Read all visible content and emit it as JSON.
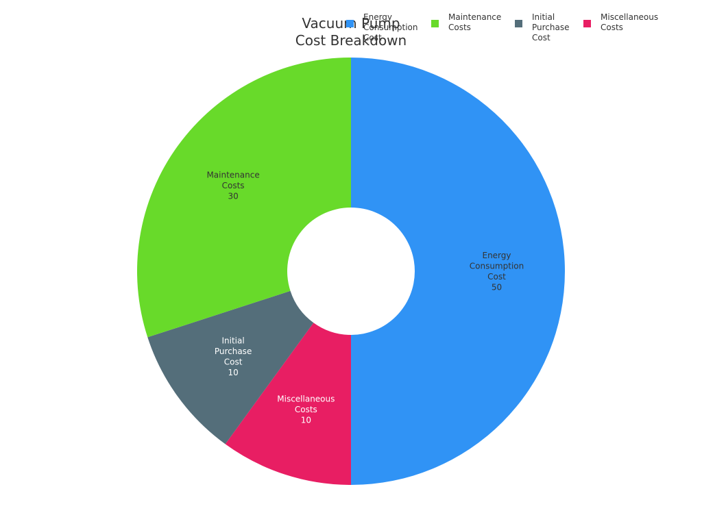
{
  "chart_data": {
    "type": "pie",
    "donut": true,
    "title": "Vacuum Pump\nCost Breakdown",
    "legend_placement": "top-right",
    "series": [
      {
        "name": "Energy Consumption Cost",
        "legend_lines": [
          "Energy",
          "Consumption",
          "Cost"
        ],
        "value": 50,
        "color": "#3093F5",
        "label_color": "#333333"
      },
      {
        "name": "Miscellaneous Costs",
        "legend_lines": [
          "Miscellaneous",
          "Costs"
        ],
        "value": 10,
        "color": "#E81E63",
        "label_color": "#FFFFFF"
      },
      {
        "name": "Initial Purchase Cost",
        "legend_lines": [
          "Initial",
          "Purchase",
          "Cost"
        ],
        "value": 10,
        "color": "#546E7A",
        "label_color": "#FFFFFF"
      },
      {
        "name": "Maintenance Costs",
        "legend_lines": [
          "Maintenance",
          "Costs"
        ],
        "value": 30,
        "color": "#68DA2A",
        "label_color": "#333333"
      }
    ],
    "legend_order": [
      "Energy Consumption Cost",
      "Maintenance Costs",
      "Initial Purchase Cost",
      "Miscellaneous Costs"
    ]
  }
}
